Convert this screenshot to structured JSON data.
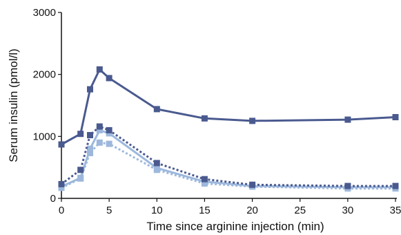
{
  "chart_data": {
    "type": "line",
    "title": "",
    "xlabel": "Time since arginine injection (min)",
    "ylabel": "Serum insulin (pmol/l)",
    "xlim": [
      0,
      35
    ],
    "ylim": [
      0,
      3000
    ],
    "xticks": [
      0,
      5,
      10,
      15,
      20,
      25,
      30,
      35
    ],
    "yticks": [
      0,
      1000,
      2000,
      3000
    ],
    "grid": false,
    "legend": "none",
    "series": [
      {
        "color": "#4a5a8f",
        "line_style": "solid",
        "x": [
          0,
          2,
          3,
          4,
          5,
          10,
          15,
          20,
          30,
          35
        ],
        "y": [
          870,
          1040,
          1760,
          2080,
          1940,
          1440,
          1290,
          1250,
          1270,
          1310
        ]
      },
      {
        "color": "#4a5a8f",
        "line_style": "dotted",
        "x": [
          0,
          2,
          3,
          4,
          5,
          10,
          15,
          20,
          30,
          35
        ],
        "y": [
          230,
          460,
          1020,
          1160,
          1100,
          570,
          310,
          220,
          200,
          200
        ]
      },
      {
        "color": "#9db8dc",
        "line_style": "solid",
        "x": [
          0,
          2,
          3,
          4,
          5,
          10,
          15,
          20,
          30,
          35
        ],
        "y": [
          190,
          330,
          800,
          1100,
          1050,
          490,
          270,
          200,
          180,
          180
        ]
      },
      {
        "color": "#9db8dc",
        "line_style": "dotted",
        "x": [
          0,
          2,
          3,
          4,
          5,
          10,
          15,
          20,
          30,
          35
        ],
        "y": [
          170,
          320,
          730,
          900,
          880,
          460,
          240,
          190,
          160,
          160
        ]
      }
    ]
  }
}
